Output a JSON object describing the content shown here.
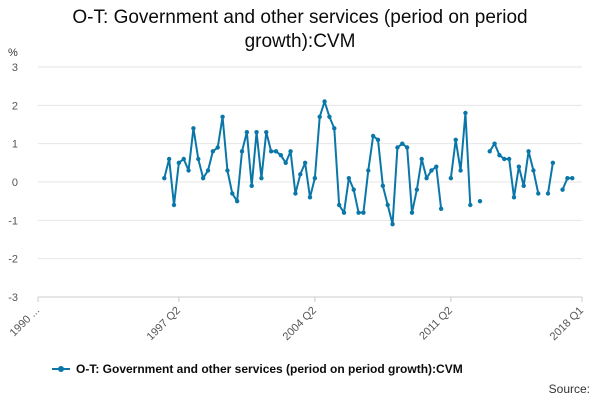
{
  "title_line1": "O-T: Government and other services (period on period",
  "title_line2": "growth):CVM",
  "source": "Source:",
  "colors": {
    "series": "#0b77a9",
    "grid": "#e6e6e6",
    "axis": "#cccccc"
  },
  "chart_data": {
    "type": "line",
    "ylabel": "%",
    "ylim": [
      -3,
      3
    ],
    "yticks": [
      -3,
      -2,
      -1,
      0,
      1,
      2,
      3
    ],
    "xticks": [
      "1990 ...",
      "1997 Q2",
      "2004 Q2",
      "2011 Q2",
      "2018 Q1"
    ],
    "x_range": [
      "1990 Q1",
      "2018 Q1"
    ],
    "legend_position": "bottom",
    "series": [
      {
        "name": "O-T: Government and other services (period on period growth):CVM",
        "start": "1996 Q3",
        "values": [
          0.1,
          0.6,
          -0.6,
          0.5,
          0.6,
          0.3,
          1.4,
          0.6,
          0.1,
          0.3,
          0.8,
          0.9,
          1.7,
          0.3,
          -0.3,
          -0.5,
          0.8,
          1.3,
          -0.1,
          1.3,
          0.1,
          1.3,
          0.8,
          0.8,
          0.7,
          0.5,
          0.8,
          -0.3,
          0.2,
          0.5,
          -0.4,
          0.1,
          1.7,
          2.1,
          1.7,
          1.4,
          -0.6,
          -0.8,
          0.1,
          -0.2,
          -0.8,
          -0.8,
          0.3,
          1.2,
          1.1,
          -0.1,
          -0.6,
          -1.1,
          0.9,
          1.0,
          0.9,
          -0.8,
          -0.2,
          0.6,
          0.1,
          0.3,
          0.4,
          -0.7,
          null,
          0.1,
          1.1,
          0.3,
          1.8,
          -0.6,
          null,
          -0.5,
          null,
          0.8,
          1.0,
          0.7,
          0.6,
          0.6,
          -0.4,
          0.4,
          -0.1,
          0.8,
          0.3,
          -0.3,
          null,
          -0.3,
          0.5,
          null,
          -0.2,
          0.1,
          0.1
        ]
      }
    ]
  }
}
